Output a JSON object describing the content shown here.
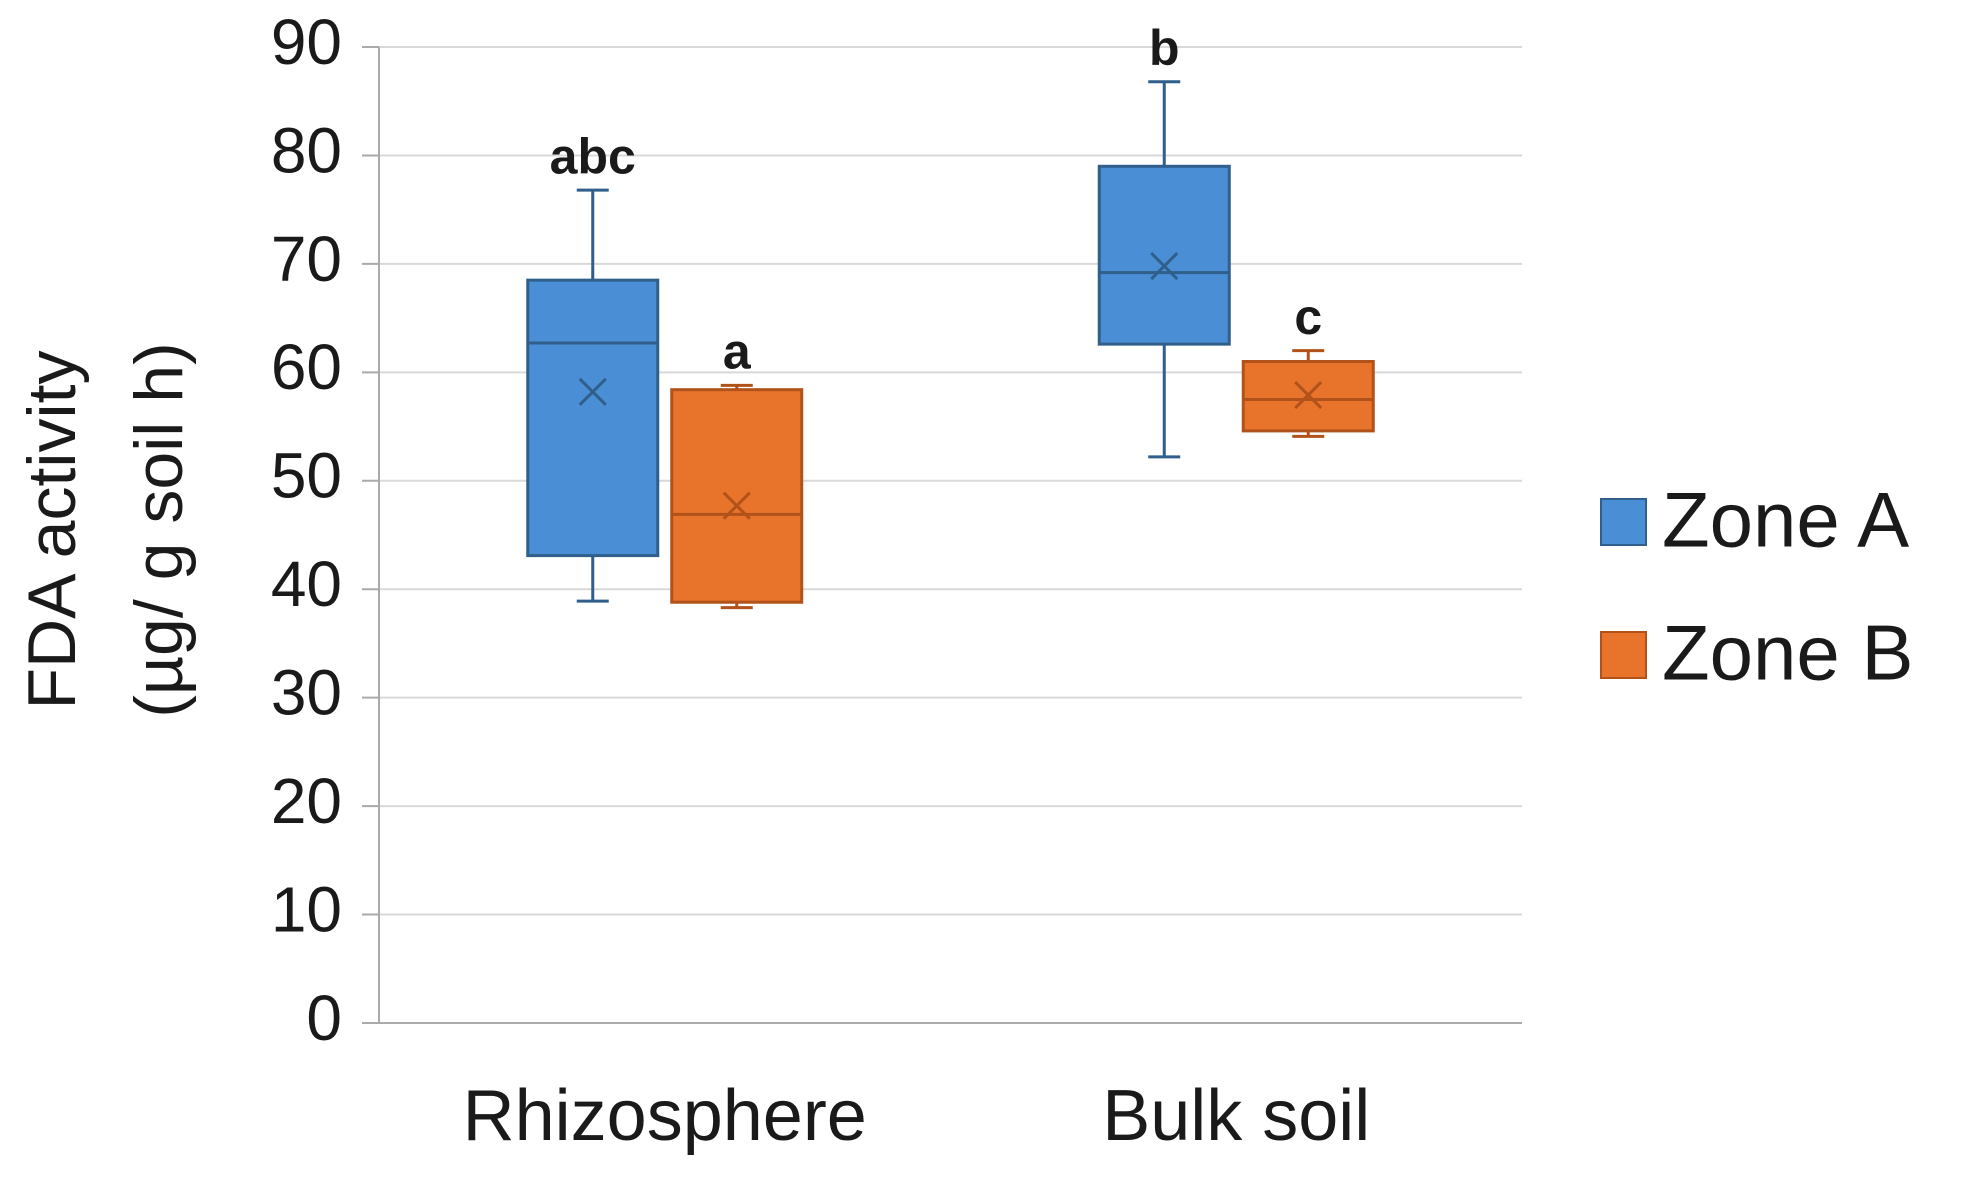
{
  "chart_data": {
    "type": "box",
    "ylabel": [
      "FDA activity",
      "(µg/ g soil h)"
    ],
    "categories": [
      "Rhizosphere",
      "Bulk soil"
    ],
    "series": [
      {
        "name": "Zone A",
        "color": "#4a8fd6",
        "stroke": "#2f5f8a",
        "min": [
          38.9,
          52.2
        ],
        "q1": [
          43.1,
          62.6
        ],
        "median": [
          62.7,
          69.2
        ],
        "q3": [
          68.5,
          79.0
        ],
        "max": [
          76.8,
          86.8
        ],
        "mean": [
          58.2,
          69.8
        ],
        "annotations": [
          "abc",
          "b"
        ]
      },
      {
        "name": "Zone B",
        "color": "#e8742c",
        "stroke": "#b0521a",
        "min": [
          38.3,
          54.1
        ],
        "q1": [
          38.8,
          54.6
        ],
        "median": [
          46.9,
          57.5
        ],
        "q3": [
          58.4,
          61.0
        ],
        "max": [
          58.8,
          62.0
        ],
        "mean": [
          47.7,
          57.9
        ],
        "annotations": [
          "a",
          "c"
        ]
      }
    ],
    "ylim": [
      0,
      90
    ],
    "yticks": [
      0,
      10,
      20,
      30,
      40,
      50,
      60,
      70,
      80,
      90
    ],
    "grid": true
  }
}
